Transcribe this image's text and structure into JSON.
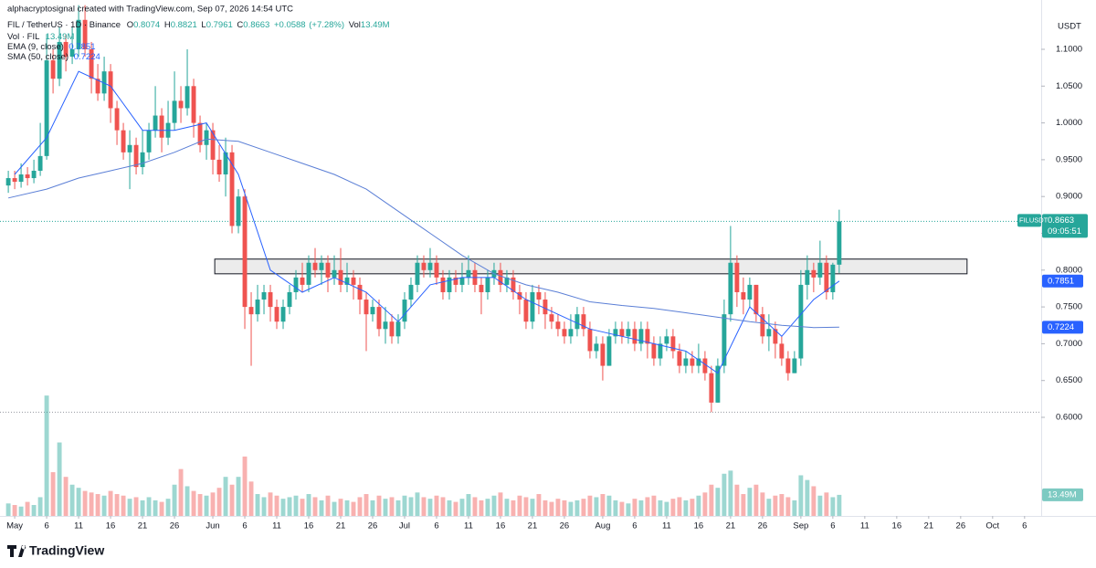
{
  "chart_data": {
    "type": "candlestick",
    "watermark": "alphacryptosignal created with TradingView.com, Sep 07, 2026 14:54 UTC",
    "symbol": "FIL / TetherUS · 1D · Binance",
    "ohlc_labels": [
      "O",
      "H",
      "L",
      "C"
    ],
    "change": "+0.0588",
    "change_pct": "(+7.28%)",
    "vol_label": "Vol",
    "vol_legend": "Vol · FIL",
    "currency": "USDT",
    "ticker": "FILUSDT",
    "countdown": "09:05:51",
    "brand": "TradingView",
    "up_color": "#26a69a",
    "down_color": "#ef5350",
    "x": [
      -1,
      0,
      1,
      2,
      3,
      4,
      5,
      6,
      7,
      8,
      9,
      10,
      11,
      12,
      13,
      14,
      15,
      16,
      17,
      18,
      19,
      20,
      21,
      22,
      23,
      24,
      25,
      26,
      27,
      28,
      29,
      30,
      31,
      32,
      33,
      34,
      35,
      36,
      37,
      38,
      39,
      40,
      41,
      42,
      43,
      44,
      45,
      46,
      47,
      48,
      49,
      50,
      51,
      52,
      53,
      54,
      55,
      56,
      57,
      58,
      59,
      60,
      61,
      62,
      63,
      64,
      65,
      66,
      67,
      68,
      69,
      70,
      71,
      72,
      73,
      74,
      75,
      76,
      77,
      78,
      79,
      80,
      81,
      82,
      83,
      84,
      85,
      86,
      87,
      88,
      89,
      90,
      91,
      92,
      93,
      94,
      95,
      96,
      97,
      98,
      99,
      100,
      101,
      102,
      103,
      104,
      105,
      106,
      107,
      108,
      109,
      110,
      111,
      112,
      113,
      114,
      115,
      116,
      117,
      118,
      119,
      120,
      121,
      122,
      123,
      124,
      125,
      126,
      127,
      128,
      129
    ],
    "open": [
      0.915,
      0.925,
      0.92,
      0.93,
      0.925,
      0.935,
      0.955,
      1.085,
      1.06,
      1.11,
      1.09,
      1.1,
      1.14,
      1.1,
      1.06,
      1.04,
      1.07,
      1.02,
      0.99,
      0.96,
      0.97,
      0.94,
      0.96,
      0.99,
      1.01,
      0.98,
      1.0,
      1.03,
      1.02,
      1.05,
      1.0,
      0.97,
      0.99,
      0.95,
      0.93,
      0.96,
      0.86,
      0.9,
      0.75,
      0.74,
      0.76,
      0.77,
      0.75,
      0.73,
      0.75,
      0.77,
      0.79,
      0.78,
      0.81,
      0.8,
      0.81,
      0.79,
      0.8,
      0.78,
      0.79,
      0.78,
      0.76,
      0.74,
      0.75,
      0.72,
      0.73,
      0.71,
      0.73,
      0.76,
      0.78,
      0.81,
      0.8,
      0.81,
      0.79,
      0.77,
      0.79,
      0.78,
      0.79,
      0.8,
      0.78,
      0.77,
      0.79,
      0.8,
      0.78,
      0.79,
      0.77,
      0.76,
      0.73,
      0.77,
      0.76,
      0.74,
      0.73,
      0.72,
      0.71,
      0.72,
      0.74,
      0.72,
      0.69,
      0.7,
      0.67,
      0.71,
      0.72,
      0.71,
      0.72,
      0.7,
      0.72,
      0.7,
      0.68,
      0.7,
      0.71,
      0.69,
      0.67,
      0.68,
      0.67,
      0.68,
      0.66,
      0.62,
      0.67,
      0.74,
      0.81,
      0.77,
      0.76,
      0.78,
      0.74,
      0.71,
      0.72,
      0.7,
      0.68,
      0.66,
      0.68,
      0.78,
      0.8,
      0.79,
      0.81,
      0.77,
      0.8074
    ],
    "high": [
      0.935,
      0.935,
      0.945,
      0.94,
      0.95,
      1.0,
      1.12,
      1.1,
      1.13,
      1.12,
      1.13,
      1.16,
      1.16,
      1.11,
      1.08,
      1.09,
      1.08,
      1.03,
      1.0,
      0.99,
      0.98,
      0.99,
      1.0,
      1.05,
      1.02,
      1.03,
      1.07,
      1.05,
      1.1,
      1.06,
      1.01,
      1.0,
      1.0,
      0.97,
      0.98,
      0.97,
      0.91,
      0.91,
      0.77,
      0.78,
      0.78,
      0.78,
      0.76,
      0.76,
      0.78,
      0.8,
      0.81,
      0.82,
      0.83,
      0.82,
      0.82,
      0.82,
      0.83,
      0.81,
      0.8,
      0.79,
      0.77,
      0.76,
      0.76,
      0.75,
      0.74,
      0.74,
      0.77,
      0.79,
      0.82,
      0.82,
      0.83,
      0.82,
      0.8,
      0.8,
      0.8,
      0.81,
      0.82,
      0.81,
      0.79,
      0.8,
      0.81,
      0.81,
      0.8,
      0.8,
      0.78,
      0.77,
      0.78,
      0.78,
      0.77,
      0.75,
      0.74,
      0.73,
      0.74,
      0.75,
      0.75,
      0.73,
      0.71,
      0.71,
      0.72,
      0.73,
      0.73,
      0.73,
      0.73,
      0.73,
      0.73,
      0.71,
      0.71,
      0.72,
      0.72,
      0.7,
      0.69,
      0.69,
      0.7,
      0.69,
      0.67,
      0.68,
      0.76,
      0.86,
      0.82,
      0.79,
      0.79,
      0.78,
      0.75,
      0.74,
      0.73,
      0.71,
      0.69,
      0.69,
      0.8,
      0.82,
      0.81,
      0.84,
      0.82,
      0.81,
      0.8821
    ],
    "low": [
      0.905,
      0.91,
      0.912,
      0.915,
      0.918,
      0.928,
      0.95,
      1.04,
      1.05,
      1.07,
      1.08,
      1.09,
      1.09,
      1.04,
      1.03,
      1.03,
      1.0,
      0.97,
      0.95,
      0.91,
      0.93,
      0.93,
      0.95,
      0.98,
      0.96,
      0.97,
      0.99,
      1.0,
      1.01,
      0.98,
      0.96,
      0.95,
      0.93,
      0.92,
      0.9,
      0.85,
      0.85,
      0.72,
      0.67,
      0.73,
      0.74,
      0.73,
      0.72,
      0.72,
      0.74,
      0.76,
      0.77,
      0.77,
      0.79,
      0.78,
      0.77,
      0.78,
      0.77,
      0.77,
      0.76,
      0.74,
      0.69,
      0.73,
      0.71,
      0.7,
      0.7,
      0.7,
      0.72,
      0.75,
      0.77,
      0.79,
      0.79,
      0.78,
      0.76,
      0.76,
      0.77,
      0.77,
      0.78,
      0.77,
      0.74,
      0.76,
      0.78,
      0.77,
      0.77,
      0.76,
      0.74,
      0.72,
      0.72,
      0.74,
      0.72,
      0.72,
      0.71,
      0.7,
      0.7,
      0.71,
      0.71,
      0.68,
      0.68,
      0.65,
      0.67,
      0.7,
      0.7,
      0.7,
      0.69,
      0.69,
      0.68,
      0.67,
      0.67,
      0.69,
      0.68,
      0.66,
      0.66,
      0.66,
      0.66,
      0.65,
      0.607,
      0.62,
      0.66,
      0.73,
      0.75,
      0.74,
      0.75,
      0.73,
      0.7,
      0.69,
      0.68,
      0.67,
      0.65,
      0.66,
      0.67,
      0.76,
      0.77,
      0.78,
      0.76,
      0.76,
      0.7961
    ],
    "close": [
      0.925,
      0.92,
      0.93,
      0.925,
      0.935,
      0.955,
      1.085,
      1.06,
      1.11,
      1.09,
      1.1,
      1.14,
      1.1,
      1.06,
      1.04,
      1.07,
      1.02,
      0.99,
      0.96,
      0.97,
      0.94,
      0.96,
      0.99,
      1.01,
      0.98,
      1.0,
      1.03,
      1.02,
      1.05,
      1.0,
      0.97,
      0.99,
      0.95,
      0.93,
      0.96,
      0.86,
      0.9,
      0.75,
      0.74,
      0.76,
      0.77,
      0.75,
      0.73,
      0.75,
      0.77,
      0.79,
      0.78,
      0.81,
      0.8,
      0.81,
      0.79,
      0.8,
      0.78,
      0.79,
      0.78,
      0.76,
      0.74,
      0.75,
      0.72,
      0.73,
      0.71,
      0.73,
      0.76,
      0.78,
      0.81,
      0.8,
      0.81,
      0.79,
      0.77,
      0.79,
      0.78,
      0.79,
      0.8,
      0.78,
      0.77,
      0.79,
      0.8,
      0.78,
      0.79,
      0.77,
      0.76,
      0.73,
      0.77,
      0.76,
      0.74,
      0.73,
      0.72,
      0.71,
      0.72,
      0.74,
      0.72,
      0.69,
      0.7,
      0.67,
      0.71,
      0.72,
      0.71,
      0.72,
      0.7,
      0.72,
      0.7,
      0.68,
      0.7,
      0.71,
      0.69,
      0.67,
      0.68,
      0.67,
      0.68,
      0.66,
      0.62,
      0.67,
      0.74,
      0.81,
      0.77,
      0.76,
      0.78,
      0.74,
      0.71,
      0.72,
      0.7,
      0.68,
      0.66,
      0.68,
      0.78,
      0.8,
      0.79,
      0.81,
      0.77,
      0.8074,
      0.8663
    ],
    "volume": [
      8,
      7,
      6,
      9,
      7,
      12,
      77,
      28,
      47,
      25,
      20,
      18,
      16,
      15,
      14,
      13,
      16,
      14,
      13,
      11,
      12,
      10,
      12,
      10,
      9,
      11,
      20,
      30,
      19,
      16,
      14,
      13,
      15,
      18,
      25,
      20,
      25,
      38,
      22,
      14,
      12,
      15,
      13,
      11,
      12,
      13,
      11,
      14,
      12,
      10,
      13,
      9,
      11,
      10,
      9,
      12,
      14,
      10,
      13,
      11,
      12,
      10,
      13,
      12,
      15,
      12,
      11,
      13,
      12,
      10,
      9,
      11,
      14,
      12,
      10,
      11,
      13,
      15,
      11,
      10,
      13,
      12,
      11,
      14,
      10,
      9,
      11,
      10,
      9,
      10,
      11,
      13,
      12,
      14,
      13,
      10,
      9,
      8,
      11,
      10,
      12,
      13,
      10,
      9,
      11,
      12,
      10,
      11,
      13,
      15,
      20,
      18,
      27,
      29,
      20,
      14,
      18,
      20,
      15,
      11,
      13,
      14,
      12,
      10,
      26,
      23,
      19,
      13,
      15,
      12,
      13.49
    ],
    "volume_label": "13.49M",
    "vlim": [
      0,
      330
    ],
    "series": [
      {
        "name": "EMA (9, close)",
        "color": "#2962ff",
        "x": [
          0,
          5,
          10,
          15,
          20,
          25,
          30,
          35,
          40,
          45,
          50,
          55,
          60,
          65,
          70,
          75,
          80,
          85,
          90,
          95,
          100,
          105,
          110,
          115,
          120,
          125,
          129
        ],
        "values": [
          0.93,
          0.98,
          1.07,
          1.05,
          0.99,
          0.99,
          1.0,
          0.93,
          0.8,
          0.77,
          0.79,
          0.77,
          0.73,
          0.78,
          0.79,
          0.79,
          0.76,
          0.74,
          0.72,
          0.71,
          0.7,
          0.69,
          0.66,
          0.75,
          0.71,
          0.76,
          0.7851
        ]
      },
      {
        "name": "SMA (50, close)",
        "color": "#5b7fd6",
        "x": [
          -1,
          5,
          10,
          15,
          20,
          25,
          30,
          35,
          40,
          45,
          50,
          55,
          60,
          65,
          70,
          75,
          80,
          85,
          90,
          95,
          100,
          105,
          110,
          115,
          120,
          125,
          129
        ],
        "values": [
          0.898,
          0.91,
          0.925,
          0.935,
          0.945,
          0.96,
          0.978,
          0.975,
          0.96,
          0.945,
          0.93,
          0.91,
          0.88,
          0.85,
          0.82,
          0.795,
          0.78,
          0.77,
          0.757,
          0.752,
          0.748,
          0.742,
          0.736,
          0.73,
          0.725,
          0.722,
          0.7224
        ]
      }
    ],
    "zone": {
      "x": [
        31.3,
        149
      ],
      "y": [
        0.795,
        0.815
      ]
    },
    "hline": 0.607,
    "xlim": [
      -2.3,
      160.6
    ],
    "ylim": [
      0.466,
      1.167
    ],
    "yticks": [
      {
        "value": 0.6,
        "label": "0.6000"
      },
      {
        "value": 0.65,
        "label": "0.6500"
      },
      {
        "value": 0.7,
        "label": "0.7000"
      },
      {
        "value": 0.75,
        "label": "0.7500"
      },
      {
        "value": 0.8,
        "label": "0.8000"
      },
      {
        "value": 0.85,
        "label": "0.8500"
      },
      {
        "value": 0.9,
        "label": "0.9000"
      },
      {
        "value": 0.95,
        "label": "0.9500"
      },
      {
        "value": 1.0,
        "label": "1.0000"
      },
      {
        "value": 1.05,
        "label": "1.0500"
      },
      {
        "value": 1.1,
        "label": "1.1000"
      }
    ],
    "xticks": [
      {
        "value": 0,
        "label": "May"
      },
      {
        "value": 5,
        "label": "6"
      },
      {
        "value": 10,
        "label": "11"
      },
      {
        "value": 15,
        "label": "16"
      },
      {
        "value": 20,
        "label": "21"
      },
      {
        "value": 25,
        "label": "26"
      },
      {
        "value": 31,
        "label": "Jun"
      },
      {
        "value": 36,
        "label": "6"
      },
      {
        "value": 41,
        "label": "11"
      },
      {
        "value": 46,
        "label": "16"
      },
      {
        "value": 51,
        "label": "21"
      },
      {
        "value": 56,
        "label": "26"
      },
      {
        "value": 61,
        "label": "Jul"
      },
      {
        "value": 66,
        "label": "6"
      },
      {
        "value": 71,
        "label": "11"
      },
      {
        "value": 76,
        "label": "16"
      },
      {
        "value": 81,
        "label": "21"
      },
      {
        "value": 86,
        "label": "26"
      },
      {
        "value": 92,
        "label": "Aug"
      },
      {
        "value": 97,
        "label": "6"
      },
      {
        "value": 102,
        "label": "11"
      },
      {
        "value": 107,
        "label": "16"
      },
      {
        "value": 112,
        "label": "21"
      },
      {
        "value": 117,
        "label": "26"
      },
      {
        "value": 123,
        "label": "Sep"
      },
      {
        "value": 128,
        "label": "6"
      },
      {
        "value": 133,
        "label": "11"
      },
      {
        "value": 138,
        "label": "16"
      },
      {
        "value": 143,
        "label": "21"
      },
      {
        "value": 148,
        "label": "26"
      },
      {
        "value": 153,
        "label": "Oct"
      },
      {
        "value": 158,
        "label": "6"
      }
    ],
    "grid": false
  }
}
